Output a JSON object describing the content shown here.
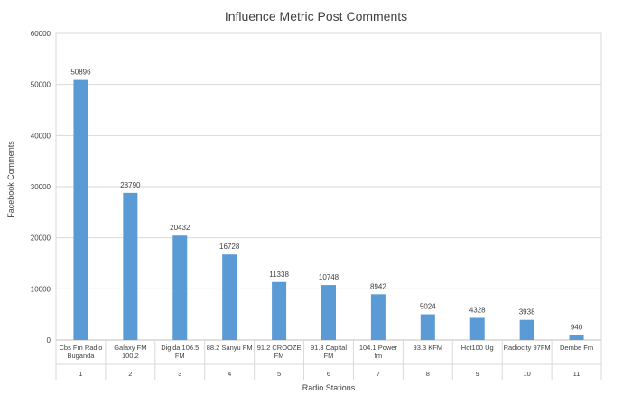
{
  "chart_data": {
    "type": "bar",
    "title": "Influence Metric Post Comments",
    "xlabel": "Radio Stations",
    "ylabel": "Facebook Comments",
    "ylim": [
      0,
      60000
    ],
    "yticks": [
      "0",
      "10000",
      "20000",
      "30000",
      "40000",
      "50000",
      "60000"
    ],
    "grid": true,
    "legend": "none",
    "bar_color": "#5b9bd5",
    "categories": [
      {
        "name": [
          "Cbs Fm Radio",
          "Buganda"
        ],
        "index": "1"
      },
      {
        "name": [
          "Galaxy FM",
          "100.2"
        ],
        "index": "2"
      },
      {
        "name": [
          "Digida 106.5",
          "FM"
        ],
        "index": "3"
      },
      {
        "name": [
          "88.2 Sanyu FM"
        ],
        "index": "4"
      },
      {
        "name": [
          "91.2 CROOZE",
          "FM"
        ],
        "index": "5"
      },
      {
        "name": [
          "91.3 Capital",
          "FM"
        ],
        "index": "6"
      },
      {
        "name": [
          "104.1 Power",
          "fm"
        ],
        "index": "7"
      },
      {
        "name": [
          "93.3 KFM"
        ],
        "index": "8"
      },
      {
        "name": [
          "Hot100 Ug"
        ],
        "index": "9"
      },
      {
        "name": [
          "Radiocity 97FM"
        ],
        "index": "10"
      },
      {
        "name": [
          "Dembe Fm"
        ],
        "index": "11"
      }
    ],
    "values": [
      50896,
      28790,
      20432,
      16728,
      11338,
      10748,
      8942,
      5024,
      4328,
      3938,
      940
    ],
    "data_labels": [
      "50896",
      "28790",
      "20432",
      "16728",
      "11338",
      "10748",
      "8942",
      "5024",
      "4328",
      "3938",
      "940"
    ]
  }
}
